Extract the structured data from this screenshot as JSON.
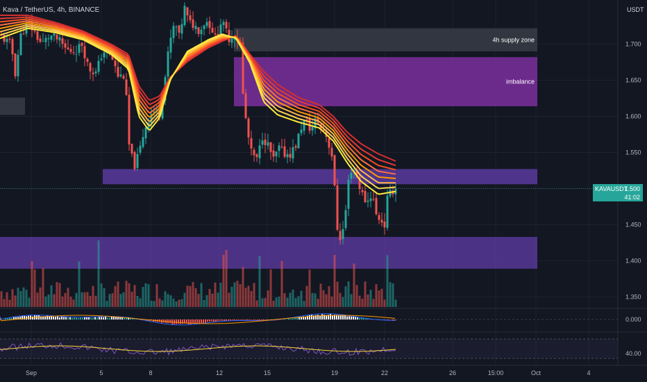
{
  "header": {
    "title": "Kava / TetherUS, 4h, BINANCE",
    "currency": "USDT"
  },
  "price_tag": {
    "symbol": "KAVAUSDT",
    "price": "1.500",
    "countdown": "41:02"
  },
  "colors": {
    "background": "#131722",
    "up": "#26a69a",
    "down": "#ef5350",
    "zone_purple": "#7b2f9e",
    "zone_band": "#5b3a9e",
    "supply": "#363a45"
  },
  "chart_data": [
    {
      "type": "candlestick",
      "xlabel": "",
      "ylabel": "",
      "x_ticks": [
        "Sep",
        "5",
        "8",
        "12",
        "15",
        "19",
        "22",
        "26",
        "15:00",
        "Oct",
        "4"
      ],
      "y_ticks": [
        "1.350",
        "1.400",
        "1.450",
        "1.500",
        "1.550",
        "1.600",
        "1.650",
        "1.700"
      ],
      "ylim": [
        1.335,
        1.74
      ],
      "last_price": 1.5,
      "close_path": [
        [
          0,
          1.712
        ],
        [
          8,
          1.705
        ],
        [
          16,
          1.7
        ],
        [
          22,
          1.66
        ],
        [
          30,
          1.712
        ],
        [
          40,
          1.73
        ],
        [
          50,
          1.716
        ],
        [
          60,
          1.7
        ],
        [
          72,
          1.712
        ],
        [
          84,
          1.706
        ],
        [
          96,
          1.692
        ],
        [
          108,
          1.69
        ],
        [
          118,
          1.7
        ],
        [
          128,
          1.666
        ],
        [
          138,
          1.66
        ],
        [
          148,
          1.69
        ],
        [
          158,
          1.69
        ],
        [
          170,
          1.656
        ],
        [
          180,
          1.656
        ],
        [
          186,
          1.56
        ],
        [
          193,
          1.53
        ],
        [
          200,
          1.548
        ],
        [
          208,
          1.582
        ],
        [
          214,
          1.596
        ],
        [
          220,
          1.608
        ],
        [
          230,
          1.604
        ],
        [
          236,
          1.64
        ],
        [
          244,
          1.7
        ],
        [
          252,
          1.73
        ],
        [
          258,
          1.71
        ],
        [
          266,
          1.75
        ],
        [
          272,
          1.73
        ],
        [
          280,
          1.726
        ],
        [
          288,
          1.718
        ],
        [
          296,
          1.733
        ],
        [
          304,
          1.725
        ],
        [
          312,
          1.703
        ],
        [
          318,
          1.73
        ],
        [
          324,
          1.723
        ],
        [
          330,
          1.708
        ],
        [
          338,
          1.712
        ],
        [
          346,
          1.702
        ],
        [
          350,
          1.63
        ],
        [
          356,
          1.58
        ],
        [
          362,
          1.55
        ],
        [
          370,
          1.54
        ],
        [
          378,
          1.572
        ],
        [
          386,
          1.56
        ],
        [
          394,
          1.54
        ],
        [
          402,
          1.556
        ],
        [
          410,
          1.548
        ],
        [
          418,
          1.548
        ],
        [
          426,
          1.56
        ],
        [
          434,
          1.585
        ],
        [
          440,
          1.595
        ],
        [
          448,
          1.58
        ],
        [
          456,
          1.598
        ],
        [
          462,
          1.582
        ],
        [
          468,
          1.58
        ],
        [
          474,
          1.56
        ],
        [
          480,
          1.54
        ],
        [
          484,
          1.46
        ],
        [
          488,
          1.43
        ],
        [
          493,
          1.436
        ],
        [
          498,
          1.47
        ],
        [
          503,
          1.52
        ],
        [
          508,
          1.53
        ],
        [
          514,
          1.516
        ],
        [
          520,
          1.496
        ],
        [
          528,
          1.48
        ],
        [
          536,
          1.494
        ],
        [
          543,
          1.458
        ],
        [
          549,
          1.46
        ],
        [
          553,
          1.44
        ],
        [
          558,
          1.486
        ],
        [
          564,
          1.496
        ],
        [
          570,
          1.5
        ]
      ],
      "ema_ribbon": {
        "count": 8,
        "colors": [
          "#ffeb3b",
          "#ffd54f",
          "#ffb74d",
          "#ff9800",
          "#ff7043",
          "#f4511e",
          "#e53935",
          "#d32f2f"
        ],
        "fast_path": [
          [
            0,
            1.708
          ],
          [
            40,
            1.722
          ],
          [
            80,
            1.716
          ],
          [
            120,
            1.706
          ],
          [
            160,
            1.686
          ],
          [
            185,
            1.666
          ],
          [
            200,
            1.6
          ],
          [
            215,
            1.58
          ],
          [
            230,
            1.598
          ],
          [
            245,
            1.65
          ],
          [
            270,
            1.69
          ],
          [
            300,
            1.706
          ],
          [
            320,
            1.714
          ],
          [
            340,
            1.708
          ],
          [
            360,
            1.674
          ],
          [
            380,
            1.62
          ],
          [
            400,
            1.602
          ],
          [
            430,
            1.592
          ],
          [
            460,
            1.584
          ],
          [
            480,
            1.566
          ],
          [
            500,
            1.536
          ],
          [
            520,
            1.51
          ],
          [
            545,
            1.492
          ],
          [
            570,
            1.496
          ]
        ],
        "slow_path": [
          [
            0,
            1.74
          ],
          [
            40,
            1.74
          ],
          [
            80,
            1.73
          ],
          [
            120,
            1.718
          ],
          [
            160,
            1.7
          ],
          [
            185,
            1.686
          ],
          [
            200,
            1.642
          ],
          [
            215,
            1.622
          ],
          [
            230,
            1.628
          ],
          [
            245,
            1.654
          ],
          [
            270,
            1.676
          ],
          [
            300,
            1.695
          ],
          [
            320,
            1.704
          ],
          [
            340,
            1.712
          ],
          [
            360,
            1.686
          ],
          [
            380,
            1.662
          ],
          [
            400,
            1.644
          ],
          [
            430,
            1.626
          ],
          [
            460,
            1.616
          ],
          [
            480,
            1.6
          ],
          [
            500,
            1.578
          ],
          [
            520,
            1.562
          ],
          [
            545,
            1.548
          ],
          [
            570,
            1.538
          ]
        ]
      },
      "zones": [
        {
          "label": "4h supply zone",
          "price_top": 1.722,
          "price_bottom": 1.69,
          "x_start": 337,
          "x_end": 774
        },
        {
          "label": "imbalance",
          "price_top": 1.682,
          "price_bottom": 1.614,
          "x_start": 337,
          "x_end": 774
        },
        {
          "label": "",
          "price_top": 1.626,
          "price_bottom": 1.602,
          "x_start": 0,
          "x_end": 36
        },
        {
          "label": "",
          "price_top": 1.527,
          "price_bottom": 1.506,
          "x_start": 148,
          "x_end": 774
        },
        {
          "label": "",
          "price_top": 1.433,
          "price_bottom": 1.389,
          "x_start": 0,
          "x_end": 774
        }
      ]
    },
    {
      "type": "bar",
      "title": "",
      "series": [
        {
          "name": "",
          "description": "volume"
        }
      ]
    },
    {
      "type": "histogram",
      "title": "",
      "y_ticks": [
        "0.000"
      ],
      "series": [
        {
          "name": "",
          "description": "macd"
        }
      ]
    },
    {
      "type": "line",
      "title": "",
      "y_ticks": [
        "40.00"
      ],
      "series": [
        {
          "name": "",
          "description": "rsi"
        }
      ]
    }
  ]
}
